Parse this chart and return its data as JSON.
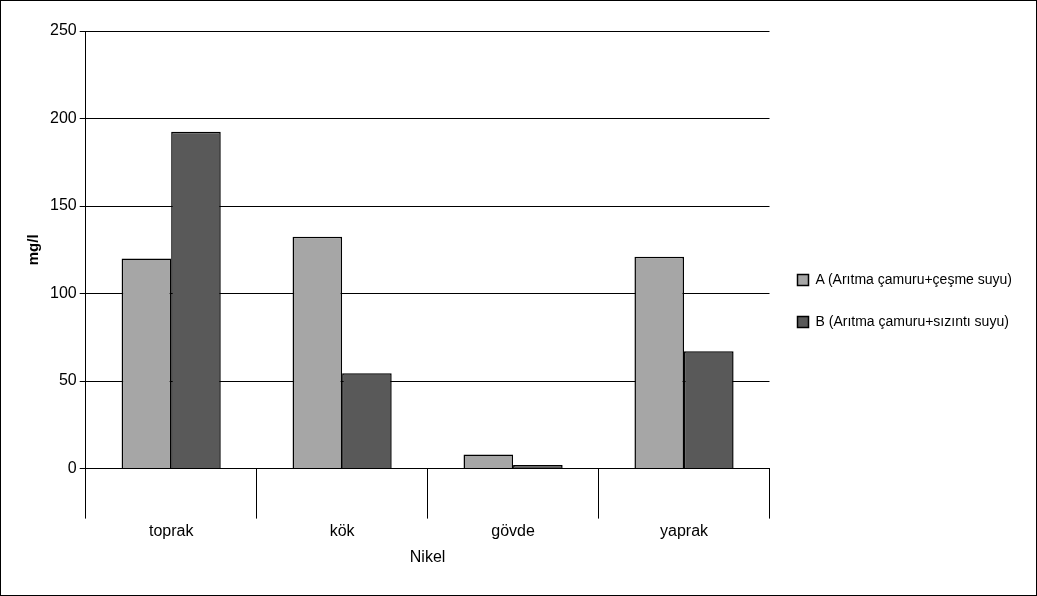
{
  "chart_data": {
    "type": "bar",
    "xlabel": "Nikel",
    "ylabel": "mg/l",
    "categories": [
      "toprak",
      "kök",
      "gövde",
      "yaprak"
    ],
    "series": [
      {
        "name": "A (Arıtma çamuru+çeşme suyu)",
        "color": "#a6a6a6",
        "values": [
          120,
          132.5,
          8,
          121
        ]
      },
      {
        "name": "B (Arıtma çamuru+sızıntı suyu)",
        "color": "#595959",
        "values": [
          192.5,
          54.5,
          2,
          67
        ]
      }
    ],
    "ylim": [
      0,
      250
    ],
    "yticks": [
      0,
      50,
      100,
      150,
      200,
      250
    ],
    "grid": "y",
    "legend": "right"
  }
}
